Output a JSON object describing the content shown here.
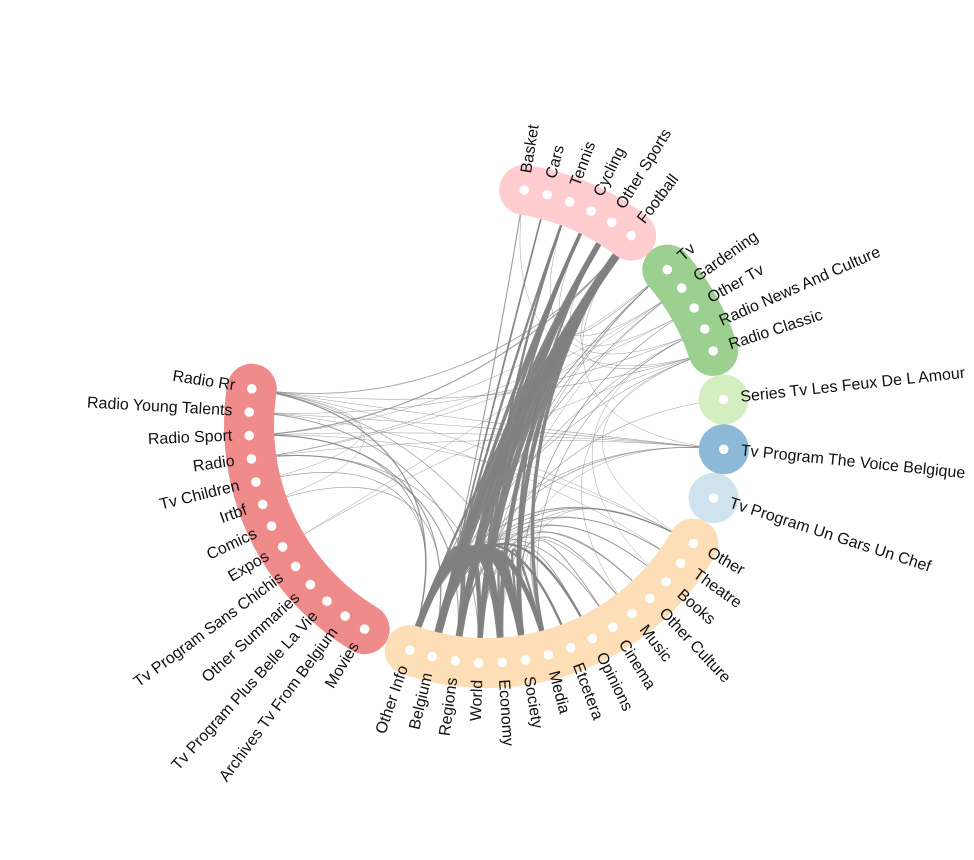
{
  "diagram": {
    "type": "hierarchical-edge-bundling",
    "groups": [
      {
        "id": "sport",
        "color": "#FFCCCF",
        "nodes": [
          "Basket",
          "Cars",
          "Tennis",
          "Cycling",
          "Other Sports",
          "Football"
        ]
      },
      {
        "id": "radio-tv",
        "color": "#9CD090",
        "nodes": [
          "Tv",
          "Gardening",
          "Other Tv",
          "Radio News And Culture",
          "Radio Classic"
        ]
      },
      {
        "id": "feux",
        "color": "#D4EEC2",
        "nodes": [
          "Series Tv Les Feux De L Amour"
        ]
      },
      {
        "id": "voice",
        "color": "#8EB8D8",
        "nodes": [
          "Tv Program The Voice Belgique"
        ]
      },
      {
        "id": "gars",
        "color": "#CFE3EF",
        "nodes": [
          "Tv Program Un Gars Un Chef"
        ]
      },
      {
        "id": "culture-info",
        "color": "#FDDEB6",
        "nodes": [
          "Other",
          "Theatre",
          "Books",
          "Other Culture",
          "Music",
          "Cinema",
          "Opinions",
          "Etcetera",
          "Media",
          "Society",
          "Economy",
          "World",
          "Regions",
          "Belgium",
          "Other Info"
        ]
      },
      {
        "id": "rtbf",
        "color": "#EF8B8B",
        "nodes": [
          "Movies",
          "Archives Tv From Belgium",
          "Tv Program Plus Belle La Vie",
          "Other Summaries",
          "Tv Program Sans Chichis",
          "Expos",
          "Comics",
          "Irtbf",
          "Tv Children",
          "Radio",
          "Radio Sport",
          "Radio Young Talents",
          "Radio Rr"
        ]
      }
    ],
    "links": [
      {
        "source": "Football",
        "target": "Belgium",
        "weight": 7
      },
      {
        "source": "Football",
        "target": "Regions",
        "weight": 6
      },
      {
        "source": "Football",
        "target": "World",
        "weight": 5
      },
      {
        "source": "Football",
        "target": "Economy",
        "weight": 4
      },
      {
        "source": "Football",
        "target": "Society",
        "weight": 4
      },
      {
        "source": "Football",
        "target": "Media",
        "weight": 3
      },
      {
        "source": "Other Sports",
        "target": "Belgium",
        "weight": 5
      },
      {
        "source": "Other Sports",
        "target": "Regions",
        "weight": 4
      },
      {
        "source": "Other Sports",
        "target": "World",
        "weight": 3
      },
      {
        "source": "Other Sports",
        "target": "Society",
        "weight": 2
      },
      {
        "source": "Cycling",
        "target": "Regions",
        "weight": 3
      },
      {
        "source": "Cycling",
        "target": "Belgium",
        "weight": 3
      },
      {
        "source": "Cycling",
        "target": "World",
        "weight": 2
      },
      {
        "source": "Tennis",
        "target": "Belgium",
        "weight": 2
      },
      {
        "source": "Tennis",
        "target": "World",
        "weight": 2
      },
      {
        "source": "Cars",
        "target": "Belgium",
        "weight": 1.5
      },
      {
        "source": "Basket",
        "target": "Belgium",
        "weight": 1
      },
      {
        "source": "Football",
        "target": "Other Info",
        "weight": 2
      },
      {
        "source": "Other Info",
        "target": "Economy",
        "weight": 6
      },
      {
        "source": "Other Info",
        "target": "Society",
        "weight": 5
      },
      {
        "source": "Belgium",
        "target": "Society",
        "weight": 5
      },
      {
        "source": "Belgium",
        "target": "Economy",
        "weight": 4
      },
      {
        "source": "Regions",
        "target": "Society",
        "weight": 4
      },
      {
        "source": "World",
        "target": "Society",
        "weight": 3
      },
      {
        "source": "Other Info",
        "target": "Media",
        "weight": 4
      },
      {
        "source": "Belgium",
        "target": "Media",
        "weight": 3
      },
      {
        "source": "Regions",
        "target": "Economy",
        "weight": 3
      },
      {
        "source": "Other Info",
        "target": "Regions",
        "weight": 4
      },
      {
        "source": "Other Info",
        "target": "World",
        "weight": 3
      },
      {
        "source": "Belgium",
        "target": "World",
        "weight": 3
      },
      {
        "source": "Other Info",
        "target": "Etcetera",
        "weight": 2
      },
      {
        "source": "Belgium",
        "target": "Opinions",
        "weight": 2
      },
      {
        "source": "Society",
        "target": "Media",
        "weight": 2
      },
      {
        "source": "Economy",
        "target": "Society",
        "weight": 2
      },
      {
        "source": "Other Info",
        "target": "Other",
        "weight": 1
      },
      {
        "source": "Belgium",
        "target": "Theatre",
        "weight": 0.8
      },
      {
        "source": "Regions",
        "target": "Books",
        "weight": 0.8
      },
      {
        "source": "World",
        "target": "Other Culture",
        "weight": 0.8
      },
      {
        "source": "Society",
        "target": "Music",
        "weight": 0.8
      },
      {
        "source": "Media",
        "target": "Cinema",
        "weight": 0.8
      },
      {
        "source": "Economy",
        "target": "Opinions",
        "weight": 0.8
      },
      {
        "source": "Other Info",
        "target": "Cinema",
        "weight": 0.8
      },
      {
        "source": "Belgium",
        "target": "Other Culture",
        "weight": 0.6
      },
      {
        "source": "Regions",
        "target": "Music",
        "weight": 0.6
      },
      {
        "source": "Other Info",
        "target": "Radio Rr",
        "weight": 1.2
      },
      {
        "source": "Belgium",
        "target": "Radio Sport",
        "weight": 1
      },
      {
        "source": "Regions",
        "target": "Radio",
        "weight": 1
      },
      {
        "source": "World",
        "target": "Radio Young Talents",
        "weight": 0.8
      },
      {
        "source": "Other Info",
        "target": "Radio Sport",
        "weight": 0.8
      },
      {
        "source": "Economy",
        "target": "Radio",
        "weight": 0.6
      },
      {
        "source": "Other Info",
        "target": "Tv Children",
        "weight": 0.6
      },
      {
        "source": "Belgium",
        "target": "Irtbf",
        "weight": 0.6
      },
      {
        "source": "Media",
        "target": "Radio Rr",
        "weight": 0.6
      },
      {
        "source": "Other Info",
        "target": "Tv",
        "weight": 0.8
      },
      {
        "source": "Belgium",
        "target": "Gardening",
        "weight": 0.7
      },
      {
        "source": "Regions",
        "target": "Tv",
        "weight": 0.6
      },
      {
        "source": "Society",
        "target": "Other Tv",
        "weight": 0.6
      },
      {
        "source": "Media",
        "target": "Radio News And Culture",
        "weight": 0.6
      },
      {
        "source": "Other Info",
        "target": "Radio Classic",
        "weight": 0.5
      },
      {
        "source": "Belgium",
        "target": "Radio News And Culture",
        "weight": 0.5
      },
      {
        "source": "World",
        "target": "Tv",
        "weight": 0.5
      },
      {
        "source": "Belgium",
        "target": "Tv Program The Voice Belgique",
        "weight": 0.6
      },
      {
        "source": "Other Info",
        "target": "Tv Program The Voice Belgique",
        "weight": 0.5
      },
      {
        "source": "Regions",
        "target": "Series Tv Les Feux De L Amour",
        "weight": 0.5
      },
      {
        "source": "Belgium",
        "target": "Other",
        "weight": 0.7
      },
      {
        "source": "World",
        "target": "Other",
        "weight": 0.5
      },
      {
        "source": "Radio Sport",
        "target": "Football",
        "weight": 1
      },
      {
        "source": "Radio Rr",
        "target": "Football",
        "weight": 0.8
      },
      {
        "source": "Radio Rr",
        "target": "Tv Program The Voice Belgique",
        "weight": 0.5
      },
      {
        "source": "Radio Young Talents",
        "target": "Tv Program The Voice Belgique",
        "weight": 0.5
      },
      {
        "source": "Radio Sport",
        "target": "Tv Program The Voice Belgique",
        "weight": 0.4
      },
      {
        "source": "Radio",
        "target": "Tv Program The Voice Belgique",
        "weight": 0.4
      },
      {
        "source": "Radio Rr",
        "target": "Radio Classic",
        "weight": 0.5
      },
      {
        "source": "Radio Young Talents",
        "target": "Radio News And Culture",
        "weight": 0.5
      },
      {
        "source": "Radio Sport",
        "target": "Tv",
        "weight": 0.4
      },
      {
        "source": "Radio",
        "target": "Gardening",
        "weight": 0.4
      },
      {
        "source": "Radio",
        "target": "Other Tv",
        "weight": 0.4
      },
      {
        "source": "Radio Rr",
        "target": "Other",
        "weight": 0.4
      },
      {
        "source": "Radio Young Talents",
        "target": "Theatre",
        "weight": 0.4
      },
      {
        "source": "Radio Sport",
        "target": "Other",
        "weight": 0.4
      },
      {
        "source": "Radio Rr",
        "target": "Tv Children",
        "weight": 0.3
      },
      {
        "source": "Radio Rr",
        "target": "Irtbf",
        "weight": 0.3
      },
      {
        "source": "Basket",
        "target": "Radio Classic",
        "weight": 0.4
      },
      {
        "source": "Tennis",
        "target": "Radio News And Culture",
        "weight": 0.4
      },
      {
        "source": "Football",
        "target": "Tv",
        "weight": 0.5
      },
      {
        "source": "Cycling",
        "target": "Gardening",
        "weight": 0.4
      },
      {
        "source": "Other Sports",
        "target": "Other Tv",
        "weight": 0.4
      },
      {
        "source": "Football",
        "target": "Radio Classic",
        "weight": 0.4
      },
      {
        "source": "Tv",
        "target": "Other Info",
        "weight": 0.4
      },
      {
        "source": "Gardening",
        "target": "World",
        "weight": 0.4
      },
      {
        "source": "Other Tv",
        "target": "Society",
        "weight": 0.4
      },
      {
        "source": "Radio Classic",
        "target": "Other",
        "weight": 0.4
      },
      {
        "source": "Radio News And Culture",
        "target": "Books",
        "weight": 0.4
      },
      {
        "source": "Radio Classic",
        "target": "Music",
        "weight": 0.4
      },
      {
        "source": "Expos",
        "target": "Radio Classic",
        "weight": 0.4
      },
      {
        "source": "Expos",
        "target": "Gardening",
        "weight": 0.4
      },
      {
        "source": "Tv Program The Voice Belgique",
        "target": "Economy",
        "weight": 0.4
      },
      {
        "source": "Tv Program The Voice Belgique",
        "target": "Football",
        "weight": 0.4
      },
      {
        "source": "Other",
        "target": "Society",
        "weight": 0.4
      },
      {
        "source": "Theatre",
        "target": "Regions",
        "weight": 0.4
      },
      {
        "source": "Books",
        "target": "Belgium",
        "weight": 0.4
      }
    ]
  }
}
